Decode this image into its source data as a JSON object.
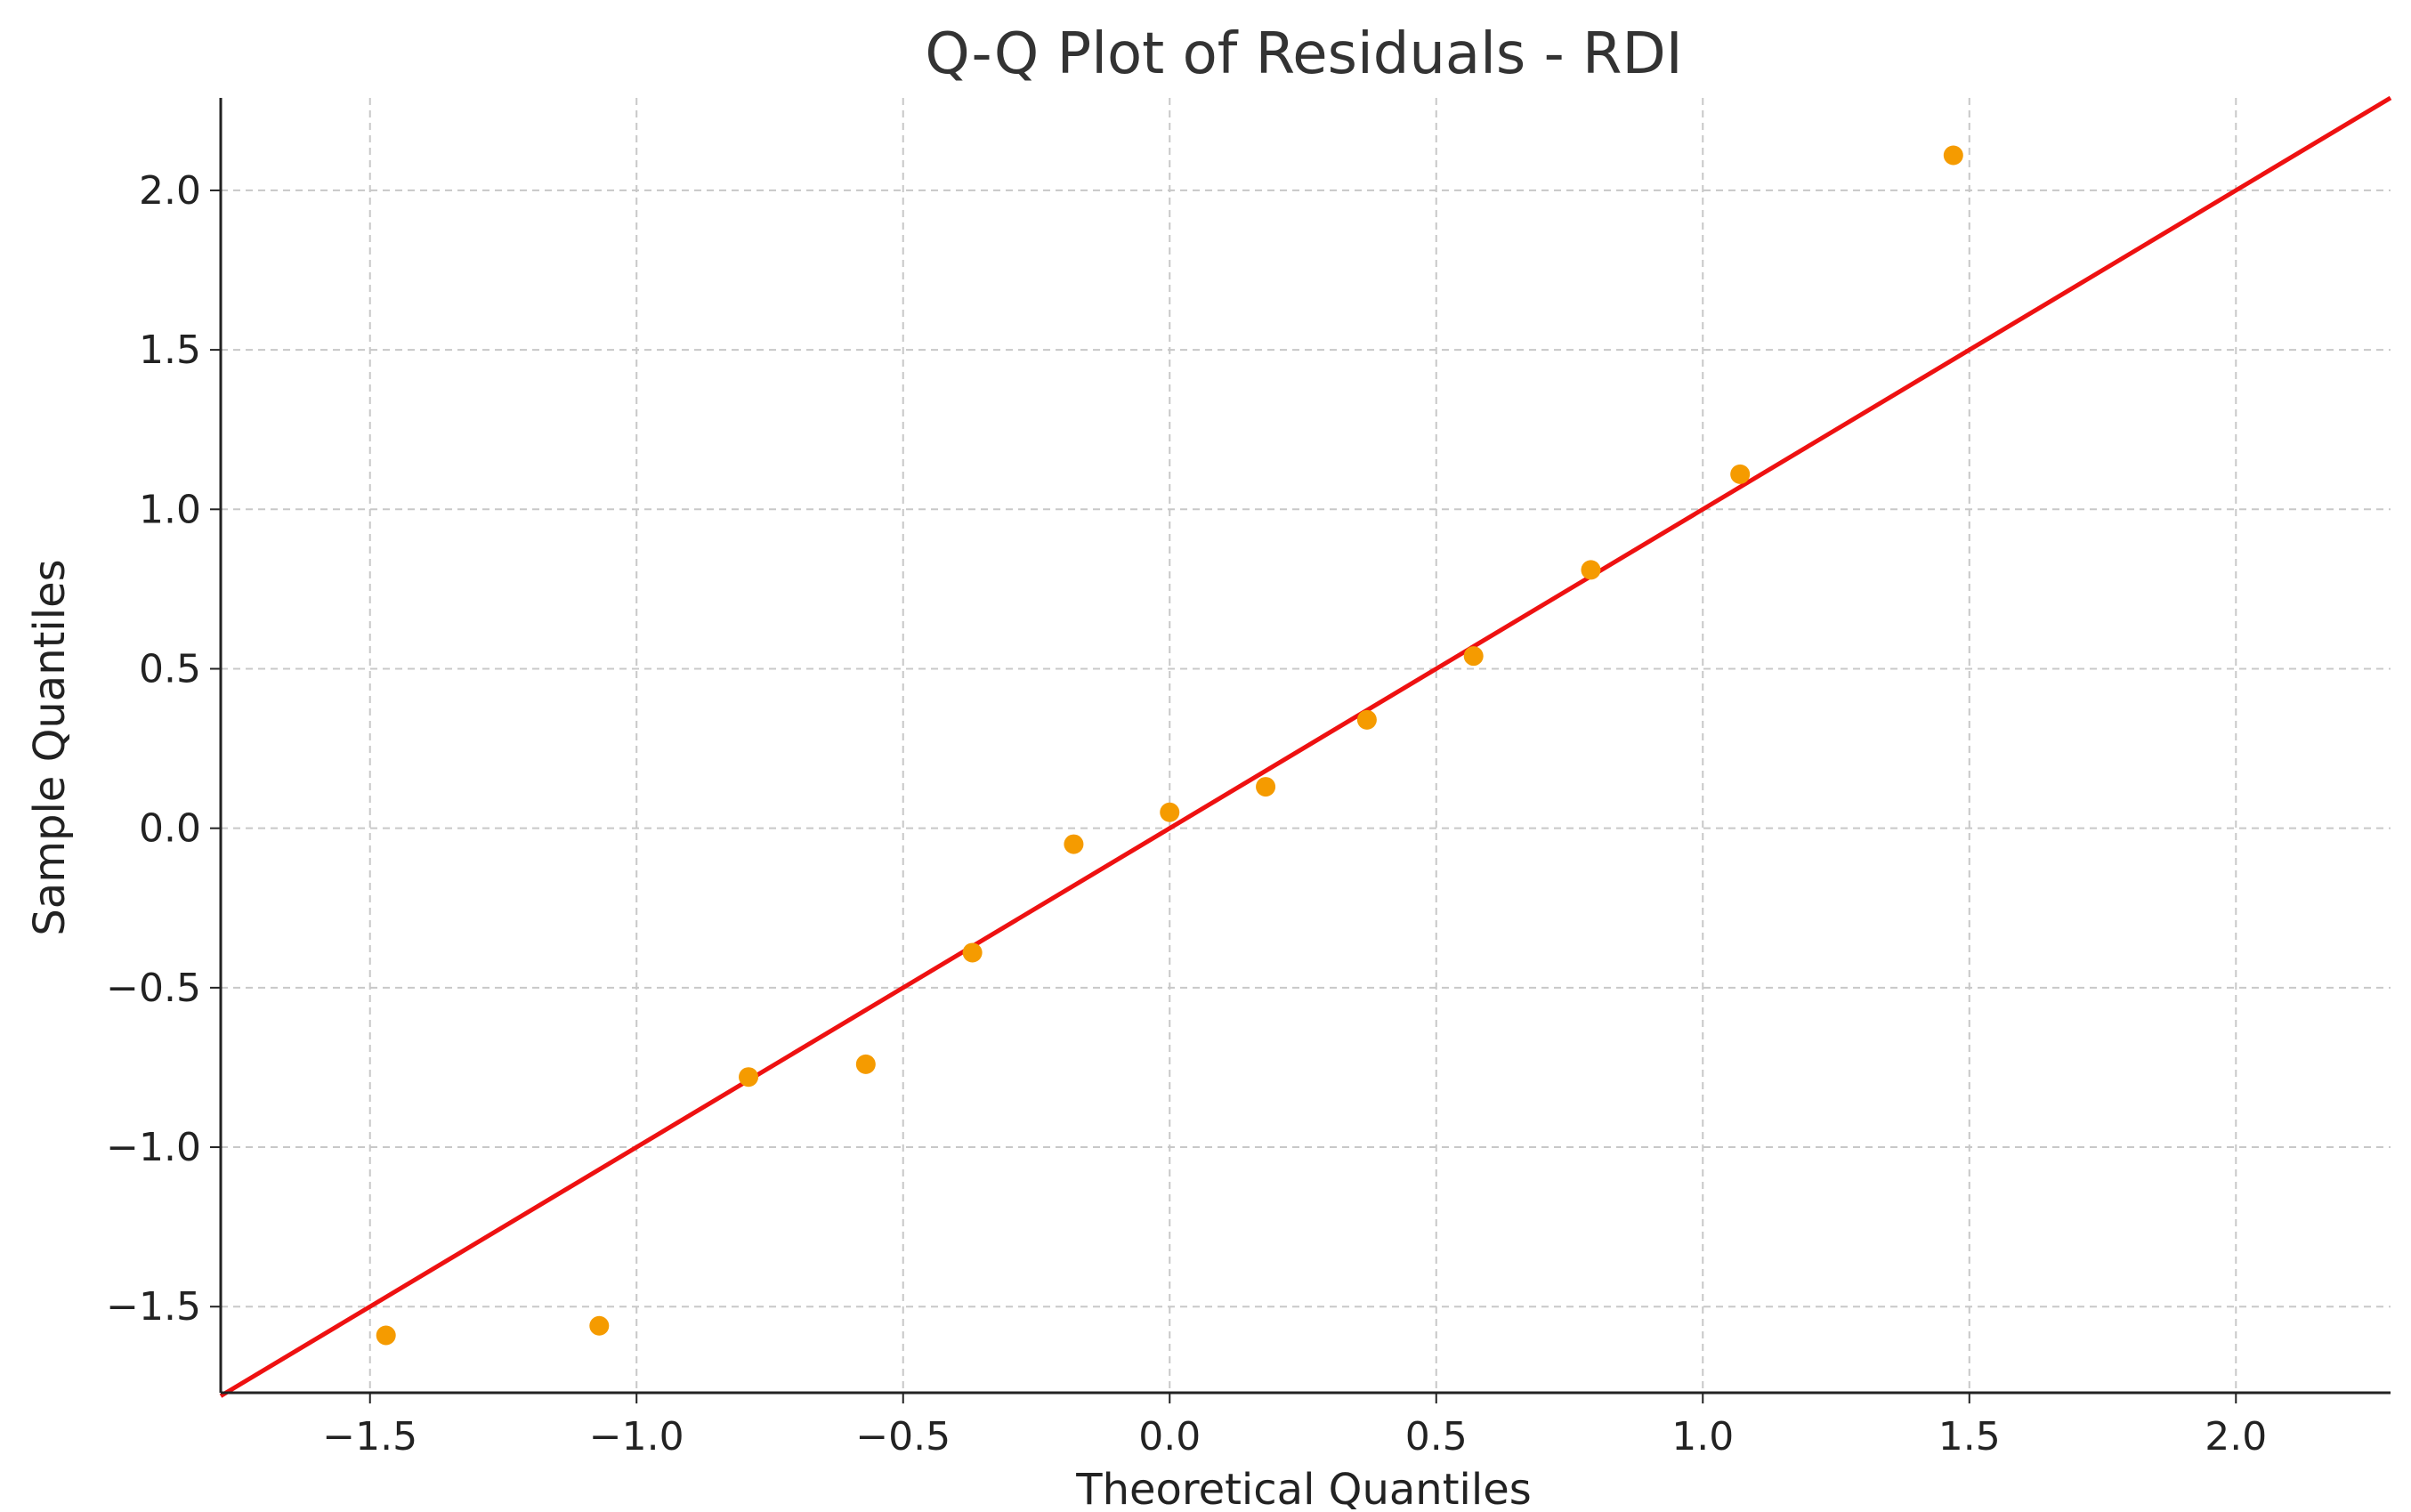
{
  "chart_data": {
    "type": "scatter",
    "title": "Q-Q Plot of Residuals - RDI",
    "xlabel": "Theoretical Quantiles",
    "ylabel": "Sample Quantiles",
    "xlim": [
      -1.78,
      2.29
    ],
    "ylim": [
      -1.77,
      2.29
    ],
    "xticks": [
      -1.5,
      -1.0,
      -0.5,
      0.0,
      0.5,
      1.0,
      1.5,
      2.0
    ],
    "xtick_labels": [
      "−1.5",
      "−1.0",
      "−0.5",
      "0.0",
      "0.5",
      "1.0",
      "1.5",
      "2.0"
    ],
    "yticks": [
      -1.5,
      -1.0,
      -0.5,
      0.0,
      0.5,
      1.0,
      1.5,
      2.0
    ],
    "ytick_labels": [
      "−1.5",
      "−1.0",
      "−0.5",
      "0.0",
      "0.5",
      "1.0",
      "1.5",
      "2.0"
    ],
    "grid": true,
    "points": {
      "x": [
        -1.47,
        -1.07,
        -0.79,
        -0.57,
        -0.37,
        -0.18,
        0.0,
        0.18,
        0.37,
        0.57,
        0.79,
        1.07,
        1.47
      ],
      "y": [
        -1.59,
        -1.56,
        -0.78,
        -0.74,
        -0.39,
        -0.05,
        0.05,
        0.13,
        0.34,
        0.54,
        0.81,
        1.11,
        2.11
      ],
      "color": "#f59b00"
    },
    "reference_line": {
      "slope": 1,
      "intercept": 0,
      "color": "#ee1111"
    }
  }
}
